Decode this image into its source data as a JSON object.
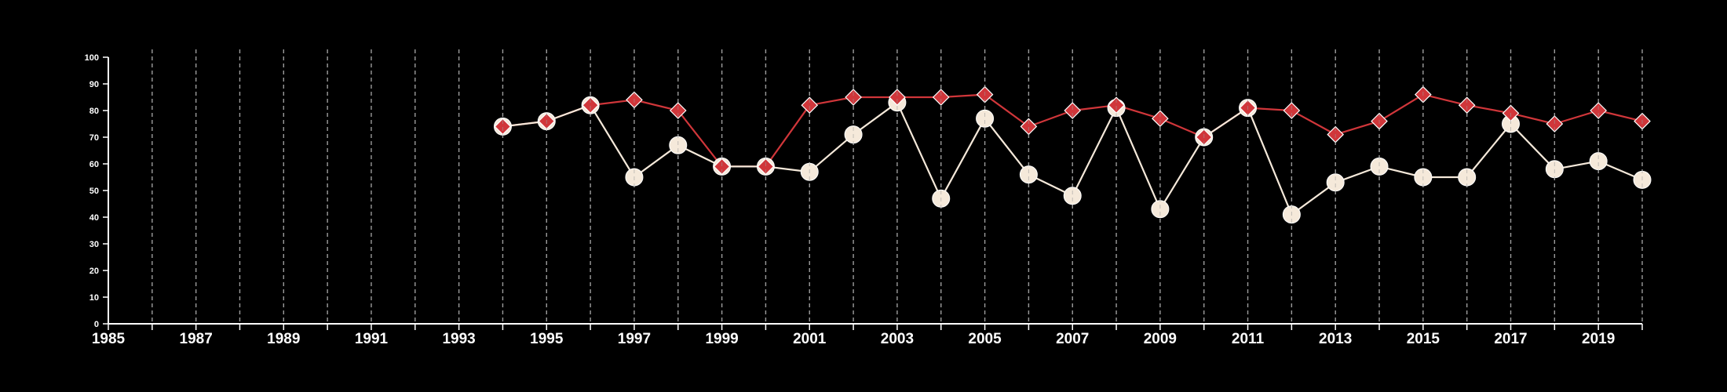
{
  "chart_data": {
    "type": "line",
    "xlim": [
      1985,
      2020
    ],
    "ylim": [
      0,
      100
    ],
    "x_ticks": [
      "1985",
      "1987",
      "1989",
      "1991",
      "1993",
      "1995",
      "1997",
      "1999",
      "2001",
      "2003",
      "2005",
      "2007",
      "2009",
      "2011",
      "2013",
      "2015",
      "2017",
      "2019"
    ],
    "y_ticks": [
      "0",
      "10",
      "20",
      "30",
      "40",
      "50",
      "60",
      "70",
      "80",
      "90",
      "100"
    ],
    "grid": "vertical dashed, every year",
    "legend": "none",
    "x": [
      1994,
      1995,
      1996,
      1997,
      1998,
      1999,
      2000,
      2001,
      2002,
      2003,
      2004,
      2005,
      2006,
      2007,
      2008,
      2009,
      2010,
      2011,
      2012,
      2013,
      2014,
      2015,
      2016,
      2017,
      2018,
      2019,
      2020
    ],
    "series": [
      {
        "marker": "diamond",
        "color": "#d0363a",
        "values": [
          74,
          76,
          82,
          84,
          80,
          59,
          59,
          82,
          85,
          85,
          85,
          86,
          74,
          80,
          82,
          77,
          70,
          81,
          80,
          71,
          76,
          86,
          82,
          79,
          75,
          80,
          76
        ]
      },
      {
        "marker": "circle",
        "color": "#f5e9da",
        "values": [
          74,
          76,
          82,
          55,
          67,
          59,
          59,
          57,
          71,
          83,
          47,
          77,
          56,
          48,
          81,
          43,
          70,
          81,
          41,
          53,
          59,
          55,
          55,
          75,
          58,
          61,
          54
        ]
      }
    ]
  }
}
